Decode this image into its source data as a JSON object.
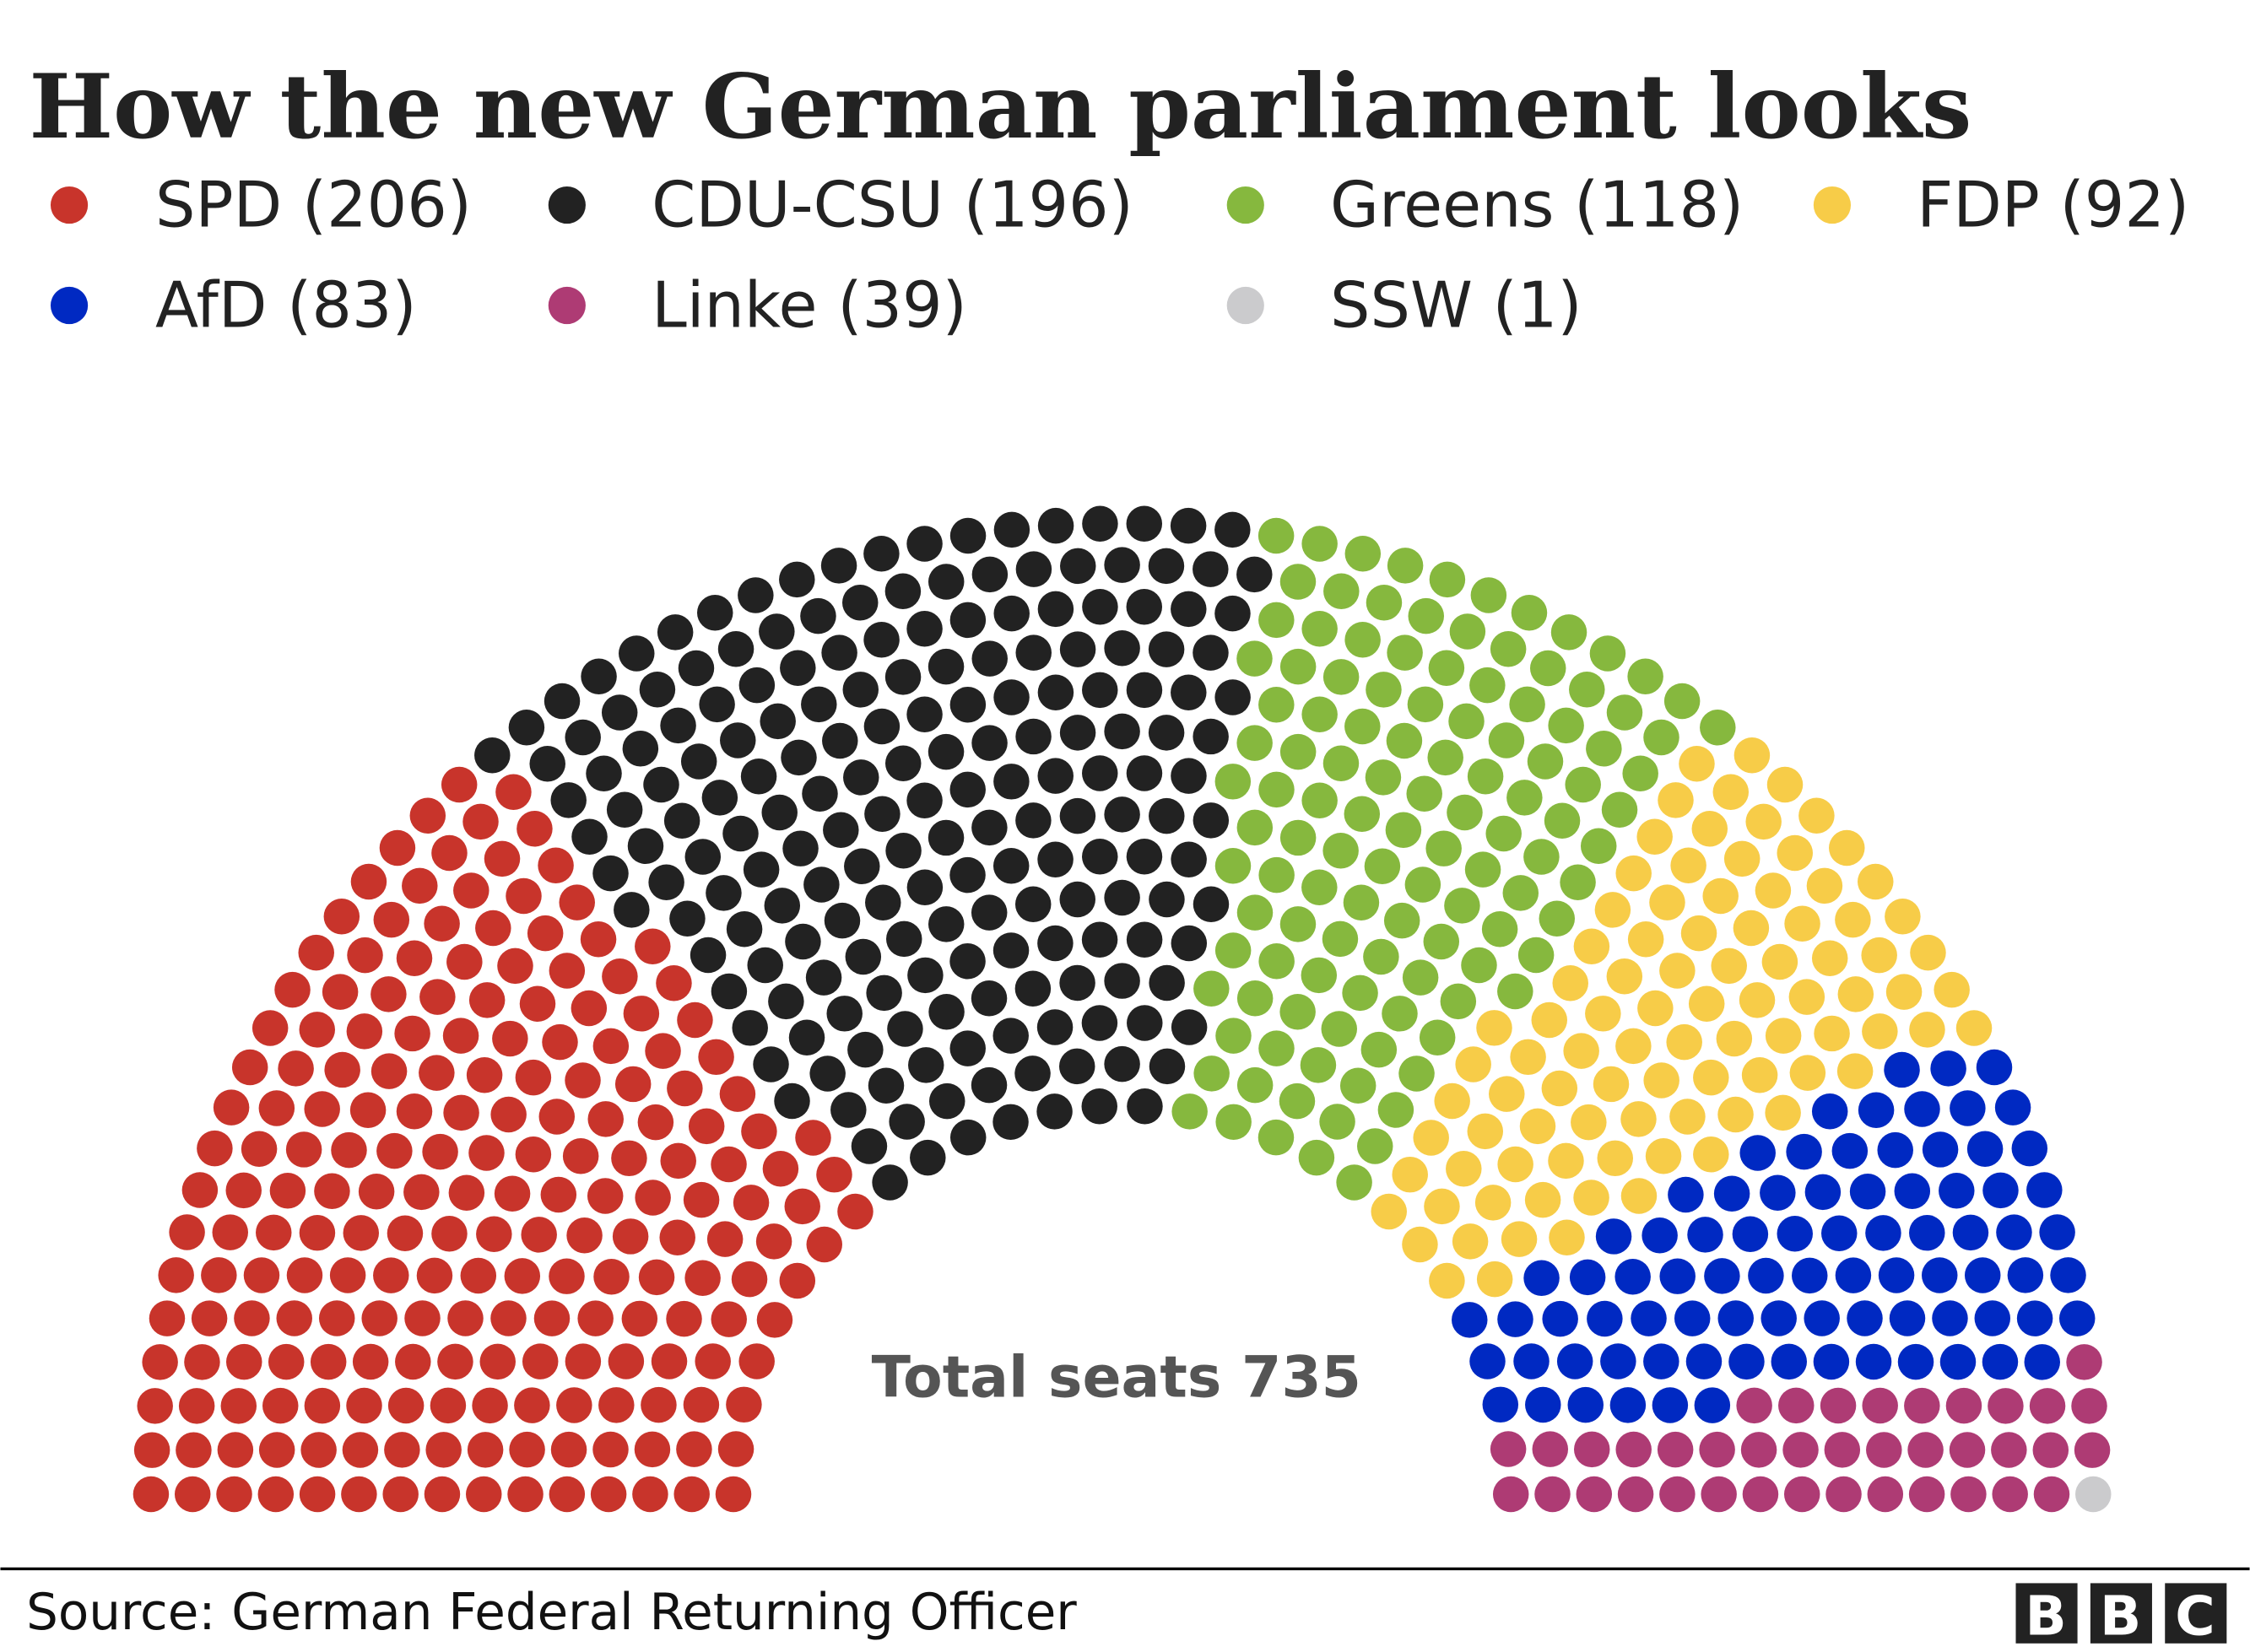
{
  "chart_data": {
    "type": "parliament",
    "title": "How the new German parliament looks",
    "total_label": "Total seats 735",
    "total_seats": 735,
    "legend_position": "top",
    "series": [
      {
        "name": "SPD",
        "label": "SPD (206)",
        "value": 206,
        "color": "#c8342b"
      },
      {
        "name": "CDU-CSU",
        "label": "CDU-CSU (196)",
        "value": 196,
        "color": "#222222"
      },
      {
        "name": "Greens",
        "label": "Greens (118)",
        "value": 118,
        "color": "#86b83e"
      },
      {
        "name": "FDP",
        "label": "FDP (92)",
        "value": 92,
        "color": "#f7cc48"
      },
      {
        "name": "AfD",
        "label": "AfD (83)",
        "value": 83,
        "color": "#0029c2"
      },
      {
        "name": "Linke",
        "label": "Linke (39)",
        "value": 39,
        "color": "#ae3b74"
      },
      {
        "name": "SSW",
        "label": "SSW (1)",
        "value": 1,
        "color": "#cbcbcd"
      }
    ]
  },
  "footer": {
    "source": "Source: German Federal Returning Officer",
    "logo": [
      "B",
      "B",
      "C"
    ]
  }
}
